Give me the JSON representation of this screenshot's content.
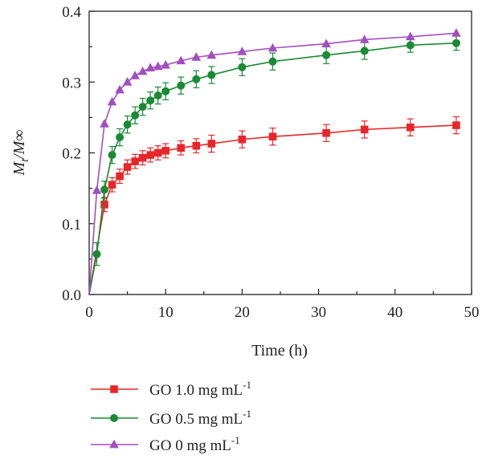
{
  "chart_data": {
    "type": "line",
    "xlabel": "Time (h)",
    "ylabel": {
      "main": "M",
      "sub_t": "t",
      "slash": "/M",
      "inf": "∞"
    },
    "xlim": [
      0,
      50
    ],
    "ylim": [
      0,
      0.4
    ],
    "xticks": [
      "0",
      "10",
      "20",
      "30",
      "40",
      "50"
    ],
    "yticks": [
      "0.0",
      "0.1",
      "0.2",
      "0.3",
      "0.4"
    ],
    "grid": false,
    "legend_position": "below",
    "series": [
      {
        "name": "GO 1.0 mg mL",
        "name_sup": "-1",
        "color": "#e8262a",
        "marker": "square",
        "x": [
          0,
          2,
          3,
          4,
          5,
          6,
          7,
          8,
          9,
          10,
          12,
          14,
          16,
          20,
          24,
          31,
          36,
          42,
          48
        ],
        "y": [
          0,
          0.127,
          0.155,
          0.167,
          0.18,
          0.188,
          0.193,
          0.197,
          0.2,
          0.203,
          0.207,
          0.21,
          0.213,
          0.219,
          0.223,
          0.228,
          0.233,
          0.236,
          0.239
        ],
        "err": [
          0,
          0.01,
          0.01,
          0.01,
          0.01,
          0.01,
          0.01,
          0.01,
          0.01,
          0.01,
          0.01,
          0.01,
          0.012,
          0.012,
          0.012,
          0.012,
          0.012,
          0.012,
          0.012
        ]
      },
      {
        "name": "GO 0.5 mg mL",
        "name_sup": "-1",
        "color": "#1a8a35",
        "marker": "circle",
        "x": [
          0,
          1,
          2,
          3,
          4,
          5,
          6,
          7,
          8,
          9,
          10,
          12,
          14,
          16,
          20,
          24,
          31,
          36,
          42,
          48
        ],
        "y": [
          0,
          0.057,
          0.148,
          0.197,
          0.222,
          0.24,
          0.253,
          0.265,
          0.274,
          0.281,
          0.287,
          0.295,
          0.304,
          0.31,
          0.321,
          0.329,
          0.338,
          0.344,
          0.352,
          0.355
        ],
        "err": [
          0,
          0.016,
          0.012,
          0.012,
          0.012,
          0.012,
          0.012,
          0.012,
          0.012,
          0.012,
          0.012,
          0.012,
          0.012,
          0.012,
          0.012,
          0.012,
          0.012,
          0.012,
          0.01,
          0.01
        ]
      },
      {
        "name": "GO 0 mg mL",
        "name_sup": "-1",
        "color": "#a24fbd",
        "marker": "triangle",
        "x": [
          0,
          1,
          2,
          3,
          4,
          5,
          6,
          7,
          8,
          9,
          10,
          12,
          14,
          16,
          20,
          24,
          31,
          36,
          42,
          48
        ],
        "y": [
          0,
          0.147,
          0.241,
          0.272,
          0.289,
          0.3,
          0.309,
          0.315,
          0.32,
          0.322,
          0.324,
          0.33,
          0.335,
          0.338,
          0.343,
          0.348,
          0.354,
          0.36,
          0.364,
          0.369
        ],
        "err": []
      }
    ]
  }
}
